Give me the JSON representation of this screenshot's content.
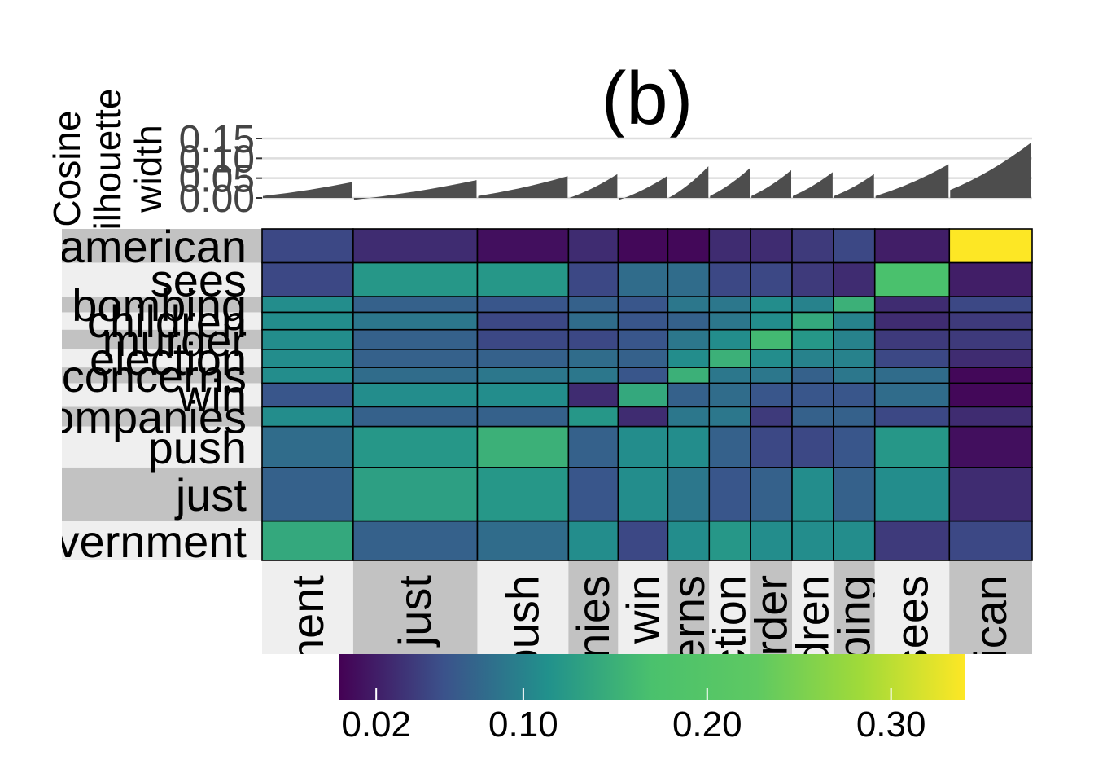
{
  "chart_data": {
    "type": "heatmap",
    "title": "(b)",
    "silhouette_label": [
      "Cosine",
      "silhouette",
      "width"
    ],
    "silhouette_ticks": [
      "0.00",
      "0.05",
      "0.10",
      "0.15"
    ],
    "silhouette_ylim": [
      0,
      0.15
    ],
    "grid": true,
    "row_labels": [
      "american",
      "sees",
      "bombing",
      "children",
      "murder",
      "election",
      "concerns",
      "win",
      "companies",
      "push",
      "just",
      "government"
    ],
    "column_labels": [
      "government",
      "just",
      "push",
      "companies",
      "win",
      "concerns",
      "election",
      "murder",
      "children",
      "bombing",
      "sees",
      "american"
    ],
    "column_weights": [
      11,
      15,
      11,
      6,
      6,
      5,
      5,
      5,
      5,
      5,
      9,
      10
    ],
    "row_weights": [
      4.3,
      4.3,
      2,
      2.2,
      2.5,
      2.3,
      2,
      3,
      2.5,
      5.2,
      6.8,
      5
    ],
    "values": [
      [
        0.05,
        0.03,
        0.01,
        0.03,
        0.005,
        0.005,
        0.03,
        0.03,
        0.04,
        0.05,
        0.02,
        0.34
      ],
      [
        0.05,
        0.12,
        0.12,
        0.05,
        0.08,
        0.08,
        0.05,
        0.05,
        0.04,
        0.03,
        0.17,
        0.02
      ],
      [
        0.11,
        0.07,
        0.06,
        0.07,
        0.06,
        0.09,
        0.09,
        0.11,
        0.1,
        0.15,
        0.03,
        0.05
      ],
      [
        0.11,
        0.09,
        0.05,
        0.08,
        0.06,
        0.07,
        0.09,
        0.11,
        0.14,
        0.1,
        0.03,
        0.04
      ],
      [
        0.11,
        0.07,
        0.05,
        0.05,
        0.06,
        0.09,
        0.11,
        0.16,
        0.12,
        0.1,
        0.04,
        0.04
      ],
      [
        0.11,
        0.07,
        0.07,
        0.08,
        0.07,
        0.11,
        0.15,
        0.11,
        0.1,
        0.1,
        0.05,
        0.03
      ],
      [
        0.11,
        0.08,
        0.09,
        0.09,
        0.06,
        0.15,
        0.09,
        0.09,
        0.07,
        0.09,
        0.08,
        0.005
      ],
      [
        0.06,
        0.11,
        0.11,
        0.03,
        0.14,
        0.07,
        0.08,
        0.06,
        0.06,
        0.06,
        0.08,
        0.005
      ],
      [
        0.11,
        0.07,
        0.07,
        0.12,
        0.03,
        0.09,
        0.09,
        0.04,
        0.07,
        0.07,
        0.05,
        0.03
      ],
      [
        0.08,
        0.12,
        0.15,
        0.07,
        0.11,
        0.11,
        0.07,
        0.05,
        0.05,
        0.06,
        0.12,
        0.01
      ],
      [
        0.07,
        0.13,
        0.12,
        0.06,
        0.11,
        0.09,
        0.06,
        0.07,
        0.11,
        0.07,
        0.11,
        0.03
      ],
      [
        0.14,
        0.07,
        0.08,
        0.11,
        0.05,
        0.11,
        0.12,
        0.11,
        0.11,
        0.11,
        0.04,
        0.05
      ]
    ],
    "silhouette_widths": [
      {
        "start": 0.005,
        "end": 0.04
      },
      {
        "start": -0.005,
        "end": 0.045
      },
      {
        "start": 0.005,
        "end": 0.055
      },
      {
        "start": 0.0,
        "end": 0.06
      },
      {
        "start": -0.005,
        "end": 0.055
      },
      {
        "start": 0.0,
        "end": 0.08
      },
      {
        "start": 0.005,
        "end": 0.075
      },
      {
        "start": 0.005,
        "end": 0.07
      },
      {
        "start": 0.005,
        "end": 0.065
      },
      {
        "start": 0.005,
        "end": 0.06
      },
      {
        "start": 0.005,
        "end": 0.085
      },
      {
        "start": 0.02,
        "end": 0.14
      }
    ],
    "colorbar": {
      "ticks": [
        "0.02",
        "0.10",
        "0.20",
        "0.30"
      ],
      "tick_values": [
        0.02,
        0.1,
        0.2,
        0.3
      ],
      "range": [
        0.0,
        0.34
      ],
      "palette": "viridis",
      "colors": [
        "#440154",
        "#3b528b",
        "#21918c",
        "#4ac16d",
        "#5ec962",
        "#a0da39",
        "#fde725"
      ]
    }
  }
}
